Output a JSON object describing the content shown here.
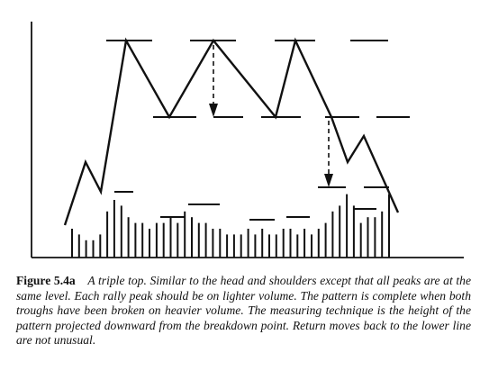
{
  "figure": {
    "label": "Figure 5.4a",
    "caption": "A triple top. Similar to the head and shoulders except that all peaks are at the same level. Each rally peak should be on lighter volume. The pattern is complete when both troughs have been broken on heavier volume. The measuring technique is the height of the pattern projected downward from the breakdown point. Return moves back to the lower line are not unusual."
  },
  "diagram": {
    "line_color": "#111111",
    "background": "#ffffff",
    "price_path": [
      [
        0,
        0.5
      ],
      [
        1,
        5.3
      ],
      [
        2,
        2.9
      ],
      [
        3,
        20.0
      ],
      [
        4,
        10.0
      ],
      [
        5,
        20.0
      ],
      [
        6,
        10.0
      ],
      [
        7,
        20.0
      ],
      [
        8,
        10.0
      ],
      [
        9,
        3.9
      ],
      [
        10,
        7.0
      ],
      [
        11,
        0.0
      ]
    ],
    "resistance_level": 20,
    "support_level": 10,
    "measured_target": 0,
    "volume_by_rally": [
      {
        "phase": "first-rally",
        "bars": [
          5,
          4,
          3,
          3,
          4,
          8,
          10,
          9
        ]
      },
      {
        "phase": "first-decline",
        "bars": [
          7,
          6,
          6,
          5,
          6,
          6
        ]
      },
      {
        "phase": "second-rally",
        "bars": [
          7,
          6,
          8,
          7,
          6,
          6
        ]
      },
      {
        "phase": "second-decline",
        "bars": [
          5,
          5,
          4,
          4,
          4,
          5,
          4,
          5
        ]
      },
      {
        "phase": "third-rally",
        "bars": [
          4,
          4,
          5,
          5,
          4,
          5,
          4,
          5
        ]
      },
      {
        "phase": "breakdown",
        "bars": [
          6,
          8,
          9,
          11,
          9
        ]
      },
      {
        "phase": "return-move",
        "bars": [
          6,
          7,
          7,
          8,
          11
        ]
      }
    ]
  }
}
